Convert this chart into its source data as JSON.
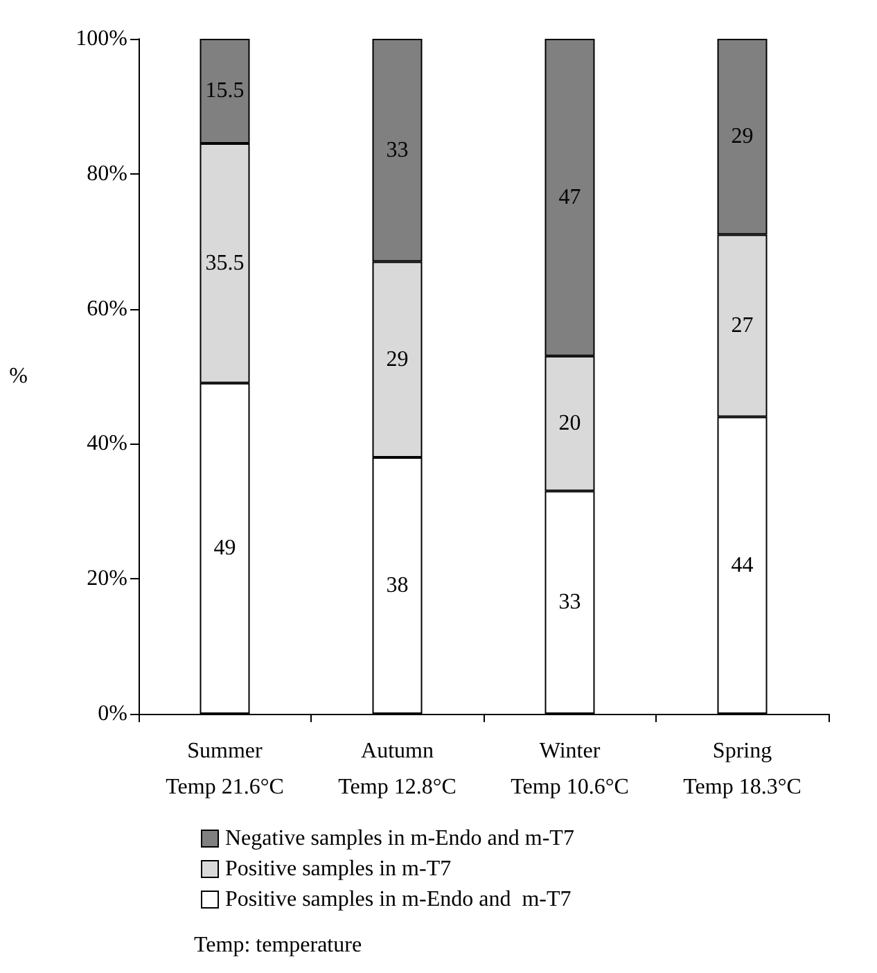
{
  "chart_data": {
    "type": "bar",
    "stacked": true,
    "ylabel": "%",
    "categories": [
      "Summer\nTemp 21.6°C",
      "Autumn\nTemp 12.8°C",
      "Winter\nTemp 10.6°C",
      "Spring\nTemp 18.3°C"
    ],
    "series": [
      {
        "name": "Positive samples in m-Endo and  m-T7",
        "color": "#ffffff",
        "values": [
          49,
          38,
          33,
          44
        ]
      },
      {
        "name": "Positive samples in m-T7",
        "color": "#d9d9d9",
        "values": [
          35.5,
          29,
          20,
          27
        ]
      },
      {
        "name": "Negative samples in m-Endo and m-T7",
        "color": "#808080",
        "values": [
          15.5,
          33,
          47,
          29
        ]
      }
    ],
    "ylim": [
      0,
      100
    ],
    "yticks": [
      {
        "value": 0,
        "label": "0%"
      },
      {
        "value": 20,
        "label": "20%"
      },
      {
        "value": 40,
        "label": "40%"
      },
      {
        "value": 60,
        "label": "60%"
      },
      {
        "value": 80,
        "label": "80%"
      },
      {
        "value": 100,
        "label": "100%"
      }
    ],
    "data_labels": true,
    "grid": false,
    "legend": "bottom",
    "annotations": [
      "Temp: temperature"
    ]
  }
}
